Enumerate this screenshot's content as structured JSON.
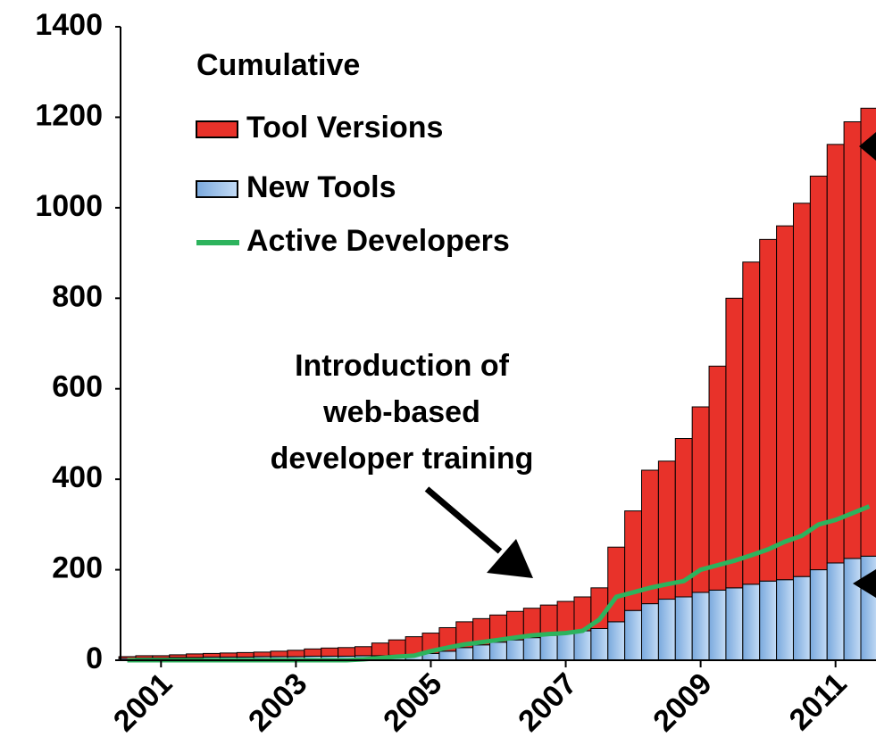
{
  "chart_data": {
    "type": "bar",
    "stacked": true,
    "legend_title": "Cumulative",
    "annotation": [
      "Introduction of",
      "web-based",
      "developer training"
    ],
    "x": [
      2000.5,
      2000.75,
      2001,
      2001.25,
      2001.5,
      2001.75,
      2002,
      2002.25,
      2002.5,
      2002.75,
      2003,
      2003.25,
      2003.5,
      2003.75,
      2004,
      2004.25,
      2004.5,
      2004.75,
      2005,
      2005.25,
      2005.5,
      2005.75,
      2006,
      2006.25,
      2006.5,
      2006.75,
      2007,
      2007.25,
      2007.5,
      2007.75,
      2008,
      2008.25,
      2008.5,
      2008.75,
      2009,
      2009.25,
      2009.5,
      2009.75,
      2010,
      2010.25,
      2010.5,
      2010.75,
      2011,
      2011.25,
      2011.5
    ],
    "series": [
      {
        "name": "Tool Versions",
        "color": "#e8322a",
        "stack": "bar",
        "values": [
          4,
          5,
          5,
          6,
          8,
          8,
          9,
          10,
          10,
          12,
          14,
          16,
          18,
          19,
          20,
          28,
          34,
          40,
          45,
          52,
          57,
          58,
          60,
          63,
          65,
          67,
          70,
          75,
          90,
          165,
          220,
          295,
          305,
          350,
          410,
          495,
          640,
          712,
          755,
          782,
          825,
          870,
          925,
          965,
          990
        ]
      },
      {
        "name": "New Tools",
        "color": "#9fc5f0",
        "stack": "bar",
        "values": [
          4,
          5,
          5,
          6,
          6,
          7,
          7,
          7,
          8,
          8,
          8,
          9,
          9,
          9,
          10,
          10,
          11,
          12,
          15,
          20,
          28,
          34,
          40,
          45,
          50,
          55,
          60,
          65,
          70,
          85,
          110,
          125,
          135,
          140,
          150,
          155,
          160,
          168,
          175,
          178,
          185,
          200,
          215,
          225,
          230
        ]
      },
      {
        "name": "Active Developers",
        "color": "#2db35d",
        "kind": "line",
        "values": [
          0,
          0,
          0,
          0,
          0,
          0,
          0,
          0,
          0,
          0,
          0,
          0,
          0,
          0,
          2,
          5,
          8,
          10,
          20,
          28,
          35,
          40,
          45,
          50,
          55,
          58,
          60,
          65,
          90,
          140,
          150,
          160,
          168,
          175,
          200,
          210,
          220,
          232,
          245,
          262,
          275,
          300,
          310,
          325,
          340
        ]
      }
    ],
    "xlim": [
      2000.4,
      2011.6
    ],
    "xticks": [
      2001,
      2003,
      2005,
      2007,
      2009,
      2011
    ],
    "ylim": [
      0,
      1400
    ],
    "yticks": [
      0,
      200,
      400,
      600,
      800,
      1000,
      1200,
      1400
    ],
    "grid": false
  }
}
